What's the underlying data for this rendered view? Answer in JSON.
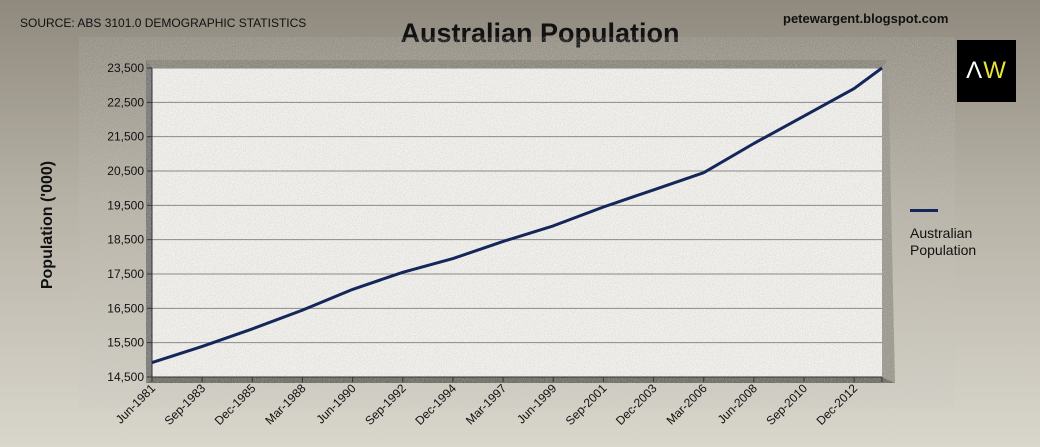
{
  "header": {
    "source": "SOURCE: ABS 3101.0 DEMOGRAPHIC STATISTICS",
    "blog": "petewargent.blogspot.com",
    "logo_text": "AW"
  },
  "colors": {
    "line": "#14265a",
    "logo_bg": "#000000",
    "logo_accent": "#e8e23a"
  },
  "chart_data": {
    "type": "line",
    "title": "Australian Population",
    "ylabel": "Population ('000)",
    "xlabel": "",
    "ylim": [
      14500,
      23500
    ],
    "yticks": [
      "14,500",
      "15,500",
      "16,500",
      "17,500",
      "18,500",
      "19,500",
      "20,500",
      "21,500",
      "22,500",
      "23,500"
    ],
    "xticks": [
      "Jun-1981",
      "Sep-1983",
      "Dec-1985",
      "Mar-1988",
      "Jun-1990",
      "Sep-1992",
      "Dec-1994",
      "Mar-1997",
      "Jun-1999",
      "Sep-2001",
      "Dec-2003",
      "Mar-2006",
      "Jun-2008",
      "Sep-2010",
      "Dec-2012"
    ],
    "grid": true,
    "legend": "right",
    "series": [
      {
        "name": "Australian Population",
        "x": [
          "Jun-1981",
          "Sep-1983",
          "Dec-1985",
          "Mar-1988",
          "Jun-1990",
          "Sep-1992",
          "Dec-1994",
          "Mar-1997",
          "Jun-1999",
          "Sep-2001",
          "Dec-2003",
          "Mar-2006",
          "Jun-2008",
          "Sep-2010",
          "Dec-2012",
          "Mar-2014"
        ],
        "values": [
          14920,
          15390,
          15900,
          16450,
          17050,
          17550,
          17950,
          18450,
          18900,
          19450,
          19950,
          20450,
          21300,
          22100,
          22900,
          23500
        ]
      }
    ]
  }
}
